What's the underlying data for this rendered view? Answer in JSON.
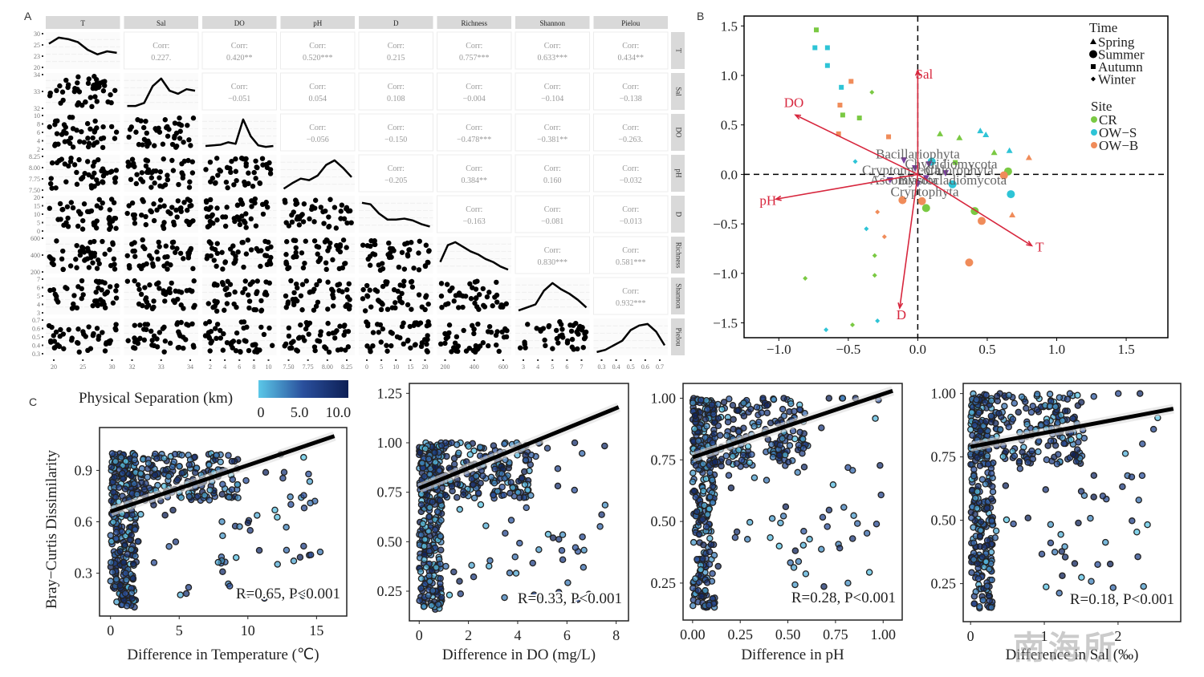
{
  "panels": {
    "a": "A",
    "b": "B",
    "c": "C"
  },
  "watermark": "南海所",
  "chart_data": [
    {
      "type": "scatter-matrix",
      "panel": "A",
      "variables": [
        "T",
        "Sal",
        "DO",
        "pH",
        "D",
        "Richness",
        "Shannon",
        "Pielou"
      ],
      "correlations": [
        {
          "row": "Sal",
          "col": "T",
          "label": "Corr:",
          "value": "0.227."
        },
        {
          "row": "DO",
          "col": "T",
          "label": "Corr:",
          "value": "0.420**"
        },
        {
          "row": "pH",
          "col": "T",
          "label": "Corr:",
          "value": "0.520***"
        },
        {
          "row": "D",
          "col": "T",
          "label": "Corr:",
          "value": "0.215"
        },
        {
          "row": "Richness",
          "col": "T",
          "label": "Corr:",
          "value": "0.757***"
        },
        {
          "row": "Shannon",
          "col": "T",
          "label": "Corr:",
          "value": "0.633***"
        },
        {
          "row": "Pielou",
          "col": "T",
          "label": "Corr:",
          "value": "0.434**"
        },
        {
          "row": "DO",
          "col": "Sal",
          "label": "Corr:",
          "value": "−0.051"
        },
        {
          "row": "pH",
          "col": "Sal",
          "label": "Corr:",
          "value": "0.054"
        },
        {
          "row": "D",
          "col": "Sal",
          "label": "Corr:",
          "value": "0.108"
        },
        {
          "row": "Richness",
          "col": "Sal",
          "label": "Corr:",
          "value": "−0.004"
        },
        {
          "row": "Shannon",
          "col": "Sal",
          "label": "Corr:",
          "value": "−0.104"
        },
        {
          "row": "Pielou",
          "col": "Sal",
          "label": "Corr:",
          "value": "−0.138"
        },
        {
          "row": "pH",
          "col": "DO",
          "label": "Corr:",
          "value": "−0.056"
        },
        {
          "row": "D",
          "col": "DO",
          "label": "Corr:",
          "value": "−0.150"
        },
        {
          "row": "Richness",
          "col": "DO",
          "label": "Corr:",
          "value": "−0.478***"
        },
        {
          "row": "Shannon",
          "col": "DO",
          "label": "Corr:",
          "value": "−0.381**"
        },
        {
          "row": "Pielou",
          "col": "DO",
          "label": "Corr:",
          "value": "−0.263."
        },
        {
          "row": "D",
          "col": "pH",
          "label": "Corr:",
          "value": "−0.205"
        },
        {
          "row": "Richness",
          "col": "pH",
          "label": "Corr:",
          "value": "0.384**"
        },
        {
          "row": "Shannon",
          "col": "pH",
          "label": "Corr:",
          "value": "0.160"
        },
        {
          "row": "Pielou",
          "col": "pH",
          "label": "Corr:",
          "value": "−0.032"
        },
        {
          "row": "Richness",
          "col": "D",
          "label": "Corr:",
          "value": "−0.163"
        },
        {
          "row": "Shannon",
          "col": "D",
          "label": "Corr:",
          "value": "−0.081"
        },
        {
          "row": "Pielou",
          "col": "D",
          "label": "Corr:",
          "value": "−0.013"
        },
        {
          "row": "Shannon",
          "col": "Richness",
          "label": "Corr:",
          "value": "0.830***"
        },
        {
          "row": "Pielou",
          "col": "Richness",
          "label": "Corr:",
          "value": "0.581***"
        },
        {
          "row": "Pielou",
          "col": "Shannon",
          "label": "Corr:",
          "value": "0.932***"
        }
      ],
      "y_ticks": [
        [
          "20",
          "23",
          "25",
          "30"
        ],
        [
          "32",
          "33",
          "34"
        ],
        [
          "2",
          "4",
          "6",
          "8",
          "10"
        ],
        [
          "7.50",
          "7.75",
          "8.00",
          "8.25"
        ],
        [
          "0",
          "5",
          "10",
          "15",
          "20"
        ],
        [
          "200",
          "400",
          "600"
        ],
        [
          "3",
          "4",
          "5",
          "6",
          "7"
        ],
        [
          "0.3",
          "0.4",
          "0.5",
          "0.6",
          "0.7"
        ]
      ],
      "x_ticks": [
        [
          "20",
          "25",
          "30"
        ],
        [
          "32",
          "33",
          "34"
        ],
        [
          "2",
          "4",
          "6",
          "8",
          "10"
        ],
        [
          "7.50",
          "7.75",
          "8.00",
          "8.25"
        ],
        [
          "0",
          "5",
          "10",
          "15",
          "20"
        ],
        [
          "200",
          "400",
          "600"
        ],
        [
          "3",
          "4",
          "5",
          "6",
          "7"
        ],
        [
          "0.3",
          "0.4",
          "0.5",
          "0.6",
          "0.7"
        ]
      ],
      "densities": [
        [
          0.75,
          0.95,
          0.9,
          0.8,
          0.55,
          0.4,
          0.5,
          0.45
        ],
        [
          0.05,
          0.05,
          0.15,
          0.7,
          0.95,
          0.55,
          0.45,
          0.6,
          0.55
        ],
        [
          0.08,
          0.1,
          0.12,
          0.2,
          0.15,
          0.95,
          0.4,
          0.1,
          0.05,
          0.08
        ],
        [
          0.02,
          0.2,
          0.35,
          0.3,
          0.45,
          0.8,
          0.95,
          0.7,
          0.4
        ],
        [
          0.9,
          0.85,
          0.55,
          0.35,
          0.35,
          0.38,
          0.32,
          0.2,
          0.12
        ],
        [
          0.3,
          0.85,
          0.95,
          0.8,
          0.65,
          0.55,
          0.4,
          0.3,
          0.15,
          0.05
        ],
        [
          0.05,
          0.15,
          0.25,
          0.7,
          0.95,
          0.75,
          0.6,
          0.4,
          0.15
        ],
        [
          0.03,
          0.1,
          0.25,
          0.4,
          0.75,
          0.9,
          0.95,
          0.7,
          0.25
        ]
      ]
    },
    {
      "type": "scatter",
      "subtype": "rda-biplot",
      "panel": "B",
      "xlim": [
        -1.25,
        1.8
      ],
      "ylim": [
        -1.65,
        1.6
      ],
      "x_ticks": [
        "−1.0",
        "−0.5",
        "0.0",
        "0.5",
        "1.0",
        "1.5"
      ],
      "x_tick_values": [
        -1.0,
        -0.5,
        0.0,
        0.5,
        1.0,
        1.5
      ],
      "y_ticks": [
        "1.5",
        "1.0",
        "0.5",
        "0.0",
        "−0.5",
        "−1.0",
        "−1.5"
      ],
      "y_tick_values": [
        1.5,
        1.0,
        0.5,
        0.0,
        -0.5,
        -1.0,
        -1.5
      ],
      "legend": {
        "time_title": "Time",
        "time": [
          "Spring",
          "Summer",
          "Autumn",
          "Winter"
        ],
        "site_title": "Site",
        "sites": [
          {
            "name": "CR",
            "color": "#7ac943"
          },
          {
            "name": "OW−S",
            "color": "#2ec4d6"
          },
          {
            "name": "OW−B",
            "color": "#f08c5a"
          }
        ],
        "position": "top-right"
      },
      "arrow_color": "#d7263d",
      "arrows": [
        {
          "label": "Sal",
          "x": 0.0,
          "y": 1.05
        },
        {
          "label": "DO",
          "x": -0.88,
          "y": 0.6
        },
        {
          "label": "pH",
          "x": -1.02,
          "y": -0.25
        },
        {
          "label": "D",
          "x": -0.13,
          "y": -1.35
        },
        {
          "label": "T",
          "x": 0.82,
          "y": -0.72
        }
      ],
      "taxa": [
        {
          "label": "Bacillariophyta",
          "x": 0.0,
          "y": 0.2,
          "mx": -0.1,
          "my": 0.14
        },
        {
          "label": "Chytridiomycota",
          "x": 0.24,
          "y": 0.1,
          "mx": 0.08,
          "my": 0.1
        },
        {
          "label": "Cryptomycota",
          "x": -0.12,
          "y": 0.04,
          "mx": -0.02,
          "my": 0.06
        },
        {
          "label": "Chlorophyta",
          "x": 0.3,
          "y": 0.04,
          "mx": 0.2,
          "my": 0.01
        },
        {
          "label": "Ascomycota",
          "x": -0.1,
          "y": -0.06,
          "mx": -0.2,
          "my": -0.06
        },
        {
          "label": "Blastocladiomycota",
          "x": 0.25,
          "y": -0.06,
          "mx": 0.06,
          "my": -0.04
        },
        {
          "label": "Cryptophyta",
          "x": 0.05,
          "y": -0.18,
          "mx": 0.0,
          "my": -0.1
        }
      ],
      "taxa_marker_color": "#7b3f9e",
      "samples": [
        {
          "x": -0.73,
          "y": 1.46,
          "site": "CR",
          "time": "Autumn"
        },
        {
          "x": -0.74,
          "y": 1.28,
          "site": "OW−S",
          "time": "Autumn"
        },
        {
          "x": -0.65,
          "y": 1.28,
          "site": "OW−S",
          "time": "Autumn"
        },
        {
          "x": -0.65,
          "y": 1.1,
          "site": "OW−S",
          "time": "Autumn"
        },
        {
          "x": -0.48,
          "y": 0.94,
          "site": "OW−B",
          "time": "Autumn"
        },
        {
          "x": -0.55,
          "y": 0.88,
          "site": "OW−S",
          "time": "Autumn"
        },
        {
          "x": -0.33,
          "y": 0.83,
          "site": "CR",
          "time": "Winter"
        },
        {
          "x": -0.56,
          "y": 0.7,
          "site": "OW−B",
          "time": "Autumn"
        },
        {
          "x": -0.54,
          "y": 0.6,
          "site": "CR",
          "time": "Autumn"
        },
        {
          "x": -0.42,
          "y": 0.57,
          "site": "CR",
          "time": "Autumn"
        },
        {
          "x": -0.57,
          "y": 0.41,
          "site": "OW−B",
          "time": "Autumn"
        },
        {
          "x": -0.21,
          "y": 0.38,
          "site": "OW−B",
          "time": "Autumn"
        },
        {
          "x": 0.16,
          "y": 0.41,
          "site": "CR",
          "time": "Spring"
        },
        {
          "x": 0.3,
          "y": 0.37,
          "site": "CR",
          "time": "Spring"
        },
        {
          "x": 0.45,
          "y": 0.44,
          "site": "OW−S",
          "time": "Spring"
        },
        {
          "x": 0.49,
          "y": 0.4,
          "site": "OW−S",
          "time": "Spring"
        },
        {
          "x": 0.55,
          "y": 0.22,
          "site": "CR",
          "time": "Spring"
        },
        {
          "x": 0.66,
          "y": 0.24,
          "site": "OW−S",
          "time": "Spring"
        },
        {
          "x": 0.8,
          "y": 0.17,
          "site": "OW−B",
          "time": "Spring"
        },
        {
          "x": -0.45,
          "y": 0.13,
          "site": "OW−S",
          "time": "Winter"
        },
        {
          "x": 0.1,
          "y": 0.13,
          "site": "OW−S",
          "time": "Summer"
        },
        {
          "x": 0.27,
          "y": 0.12,
          "site": "CR",
          "time": "Autumn"
        },
        {
          "x": 0.65,
          "y": 0.03,
          "site": "CR",
          "time": "Summer"
        },
        {
          "x": 0.62,
          "y": -0.01,
          "site": "OW−B",
          "time": "Summer"
        },
        {
          "x": 0.25,
          "y": -0.1,
          "site": "OW−S",
          "time": "Summer"
        },
        {
          "x": 0.67,
          "y": -0.2,
          "site": "OW−S",
          "time": "Summer"
        },
        {
          "x": -0.11,
          "y": -0.26,
          "site": "OW−B",
          "time": "Summer"
        },
        {
          "x": 0.03,
          "y": -0.27,
          "site": "OW−B",
          "time": "Summer"
        },
        {
          "x": 0.06,
          "y": -0.34,
          "site": "CR",
          "time": "Summer"
        },
        {
          "x": 0.41,
          "y": -0.37,
          "site": "CR",
          "time": "Summer"
        },
        {
          "x": 0.46,
          "y": -0.47,
          "site": "OW−B",
          "time": "Summer"
        },
        {
          "x": 0.68,
          "y": -0.41,
          "site": "OW−B",
          "time": "Spring"
        },
        {
          "x": -0.29,
          "y": -0.38,
          "site": "OW−B",
          "time": "Winter"
        },
        {
          "x": -0.37,
          "y": -0.55,
          "site": "OW−S",
          "time": "Winter"
        },
        {
          "x": -0.24,
          "y": -0.63,
          "site": "OW−B",
          "time": "Winter"
        },
        {
          "x": -0.31,
          "y": -0.82,
          "site": "CR",
          "time": "Winter"
        },
        {
          "x": 0.37,
          "y": -0.89,
          "site": "OW−B",
          "time": "Summer"
        },
        {
          "x": -0.81,
          "y": -1.05,
          "site": "CR",
          "time": "Winter"
        },
        {
          "x": -0.31,
          "y": -1.02,
          "site": "CR",
          "time": "Winter"
        },
        {
          "x": -0.29,
          "y": -1.48,
          "site": "OW−S",
          "time": "Winter"
        },
        {
          "x": -0.47,
          "y": -1.52,
          "site": "CR",
          "time": "Winter"
        },
        {
          "x": -0.66,
          "y": -1.57,
          "site": "OW−S",
          "time": "Winter"
        }
      ]
    },
    {
      "type": "scatter",
      "panel": "C",
      "colorbar": {
        "title": "Physical Separation (km)",
        "ticks": [
          "0",
          "5.0",
          "10.0"
        ],
        "range": [
          0,
          11
        ],
        "colors": [
          "#5bc8e8",
          "#2a4f9c",
          "#0d1f55"
        ]
      },
      "ylabel": "Bray−Curtis Dissimilarity",
      "subplots": [
        {
          "xlabel": "Difference in Temperature (℃)",
          "xlim": [
            -0.8,
            17.2
          ],
          "ylim": [
            0.05,
            1.15
          ],
          "x_ticks": [
            0,
            5,
            10,
            15
          ],
          "x_tick_labels": [
            "0",
            "5",
            "10",
            "15"
          ],
          "y_ticks": [
            0.3,
            0.6,
            0.9
          ],
          "y_tick_labels": [
            "0.3",
            "0.6",
            "0.9"
          ],
          "fit": {
            "x0": 0,
            "y0": 0.66,
            "x1": 16.3,
            "y1": 1.1
          },
          "annotation": "R=0.65, P<0.001"
        },
        {
          "xlabel": "Difference in DO (mg/L)",
          "xlim": [
            -0.4,
            8.5
          ],
          "ylim": [
            0.1,
            1.3
          ],
          "x_ticks": [
            0,
            2,
            4,
            6,
            8
          ],
          "x_tick_labels": [
            "0",
            "2",
            "4",
            "6",
            "8"
          ],
          "y_ticks": [
            0.25,
            0.5,
            0.75,
            1.0,
            1.25
          ],
          "y_tick_labels": [
            "0.25",
            "0.50",
            "0.75",
            "1.00",
            "1.25"
          ],
          "fit": {
            "x0": 0,
            "y0": 0.77,
            "x1": 8.1,
            "y1": 1.18
          },
          "annotation": "R=0.33, P<0.001"
        },
        {
          "xlabel": "Difference in pH",
          "xlim": [
            -0.05,
            1.1
          ],
          "ylim": [
            0.1,
            1.06
          ],
          "x_ticks": [
            0,
            0.25,
            0.5,
            0.75,
            1.0
          ],
          "x_tick_labels": [
            "0.00",
            "0.25",
            "0.50",
            "0.75",
            "1.00"
          ],
          "y_ticks": [
            0.25,
            0.5,
            0.75,
            1.0
          ],
          "y_tick_labels": [
            "0.25",
            "0.50",
            "0.75",
            "1.00"
          ],
          "fit": {
            "x0": 0,
            "y0": 0.76,
            "x1": 1.05,
            "y1": 1.03
          },
          "annotation": "R=0.28, P<0.001"
        },
        {
          "xlabel": "Difference in Sal (‰)",
          "xlim": [
            -0.1,
            2.85
          ],
          "ylim": [
            0.1,
            1.04
          ],
          "x_ticks": [
            0,
            1,
            2
          ],
          "x_tick_labels": [
            "0",
            "1",
            "2"
          ],
          "y_ticks": [
            0.25,
            0.5,
            0.75,
            1.0
          ],
          "y_tick_labels": [
            "0.25",
            "0.50",
            "0.75",
            "1.00"
          ],
          "fit": {
            "x0": 0,
            "y0": 0.79,
            "x1": 2.75,
            "y1": 0.94
          },
          "annotation": "R=0.18, P<0.001"
        }
      ]
    }
  ]
}
